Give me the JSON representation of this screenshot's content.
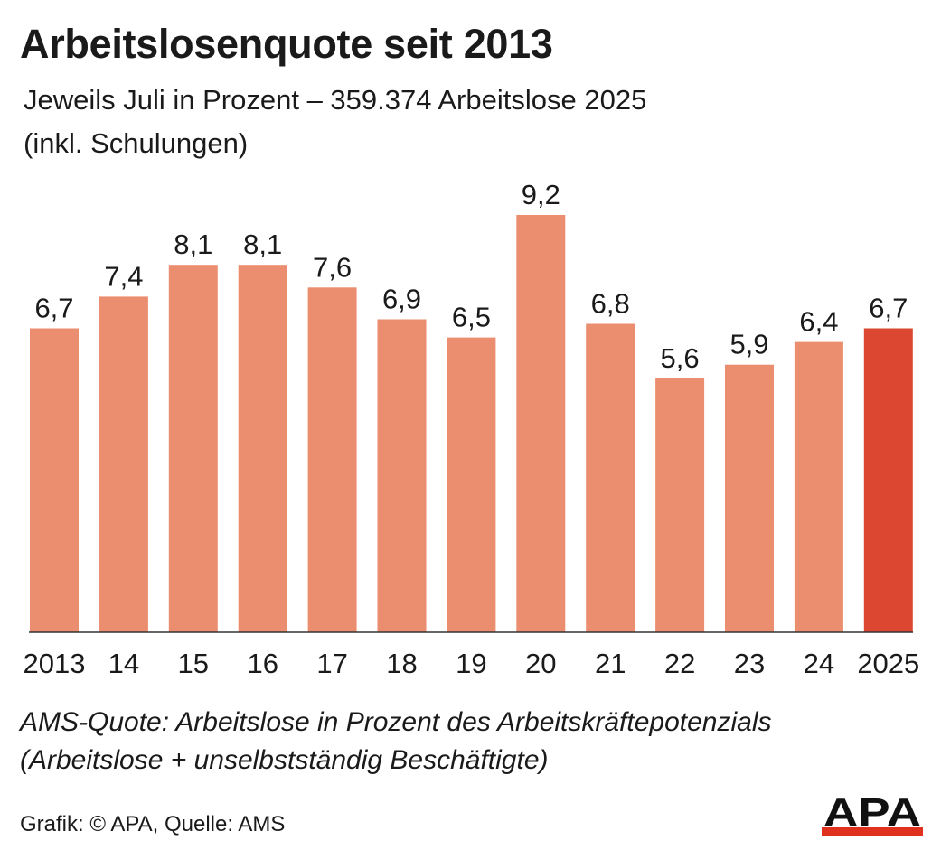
{
  "title": "Arbeitslosenquote seit 2013",
  "subtitle_line1": "Jeweils Juli in Prozent – 359.374 Arbeitslose 2025",
  "subtitle_line2": "(inkl. Schulungen)",
  "footnote_line1": "AMS-Quote: Arbeitslose in Prozent des Arbeitskräftepotenzials",
  "footnote_line2": "(Arbeitslose + unselbstständig Beschäftigte)",
  "credit": "Grafik: © APA, Quelle: AMS",
  "logo_text": "APA",
  "colors": {
    "bar": "#eb8e6f",
    "bar_highlight": "#dc4731",
    "logo_bar": "#e0301e",
    "text": "#1a1a1a"
  },
  "chart_data": {
    "type": "bar",
    "categories": [
      "2013",
      "14",
      "15",
      "16",
      "17",
      "18",
      "19",
      "20",
      "21",
      "22",
      "23",
      "24",
      "2025"
    ],
    "values": [
      6.7,
      7.4,
      8.1,
      8.1,
      7.6,
      6.9,
      6.5,
      9.2,
      6.8,
      5.6,
      5.9,
      6.4,
      6.7
    ],
    "value_labels": [
      "6,7",
      "7,4",
      "8,1",
      "8,1",
      "7,6",
      "6,9",
      "6,5",
      "9,2",
      "6,8",
      "5,6",
      "5,9",
      "6,4",
      "6,7"
    ],
    "highlight_index": 12,
    "ylim": [
      0,
      9.2
    ],
    "grid": false,
    "xlabel": "",
    "ylabel": ""
  }
}
